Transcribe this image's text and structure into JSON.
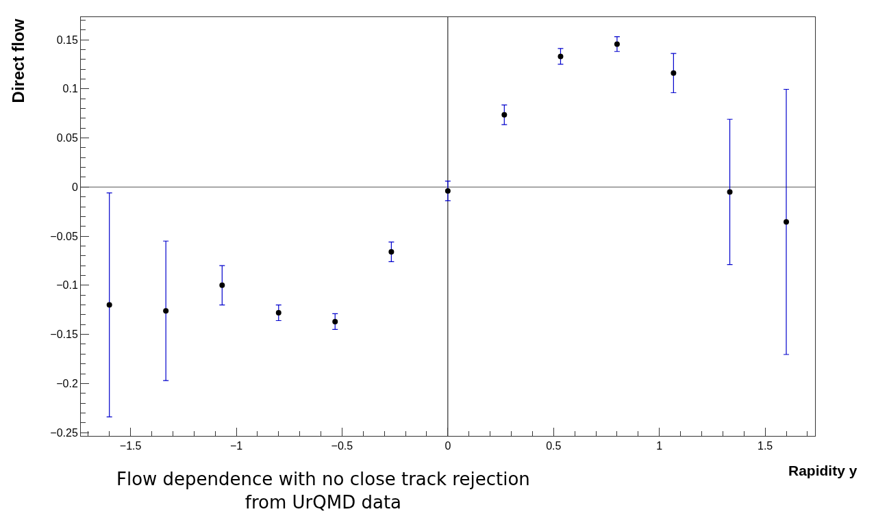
{
  "chart_data": {
    "type": "scatter",
    "xlabel": "Rapidity y",
    "ylabel": "Direct flow",
    "x": [
      -1.6,
      -1.333,
      -1.067,
      -0.8,
      -0.533,
      -0.267,
      0,
      0.267,
      0.533,
      0.8,
      1.067,
      1.333,
      1.6
    ],
    "series": [
      {
        "color": "#000000",
        "values": [
          -0.12,
          -0.126,
          -0.1,
          -0.128,
          -0.137,
          -0.066,
          -0.004,
          0.0735,
          0.133,
          0.1455,
          0.116,
          -0.005,
          -0.0355
        ],
        "errors": [
          0.114,
          0.071,
          0.02,
          0.008,
          0.008,
          0.01,
          0.01,
          0.01,
          0.008,
          0.0075,
          0.02,
          0.074,
          0.135
        ]
      }
    ],
    "marker": "circle",
    "xlim": [
      -1.735,
      1.736
    ],
    "ylim": [
      -0.2534,
      0.173
    ],
    "xticks": [
      {
        "value": -1.5,
        "label": "−1.5"
      },
      {
        "value": -1,
        "label": "−1"
      },
      {
        "value": -0.5,
        "label": "−0.5"
      },
      0,
      0.5,
      1,
      1.5
    ],
    "yticks": [
      {
        "value": -0.25,
        "label": "−0.25"
      },
      {
        "value": -0.2,
        "label": "−0.2"
      },
      {
        "value": -0.15,
        "label": "−0.15"
      },
      {
        "value": -0.1,
        "label": "−0.1"
      },
      {
        "value": -0.05,
        "label": "−0.05"
      },
      0,
      0.05,
      0.1,
      0.15
    ],
    "ref_lines": [
      {
        "axis": "x",
        "value": 0,
        "color": "#000000"
      },
      {
        "axis": "y",
        "value": 0,
        "color": "#555555"
      }
    ],
    "annotations": [
      "Flow dependence with no close track rejection\nfrom UrQMD data"
    ],
    "grid": false
  }
}
